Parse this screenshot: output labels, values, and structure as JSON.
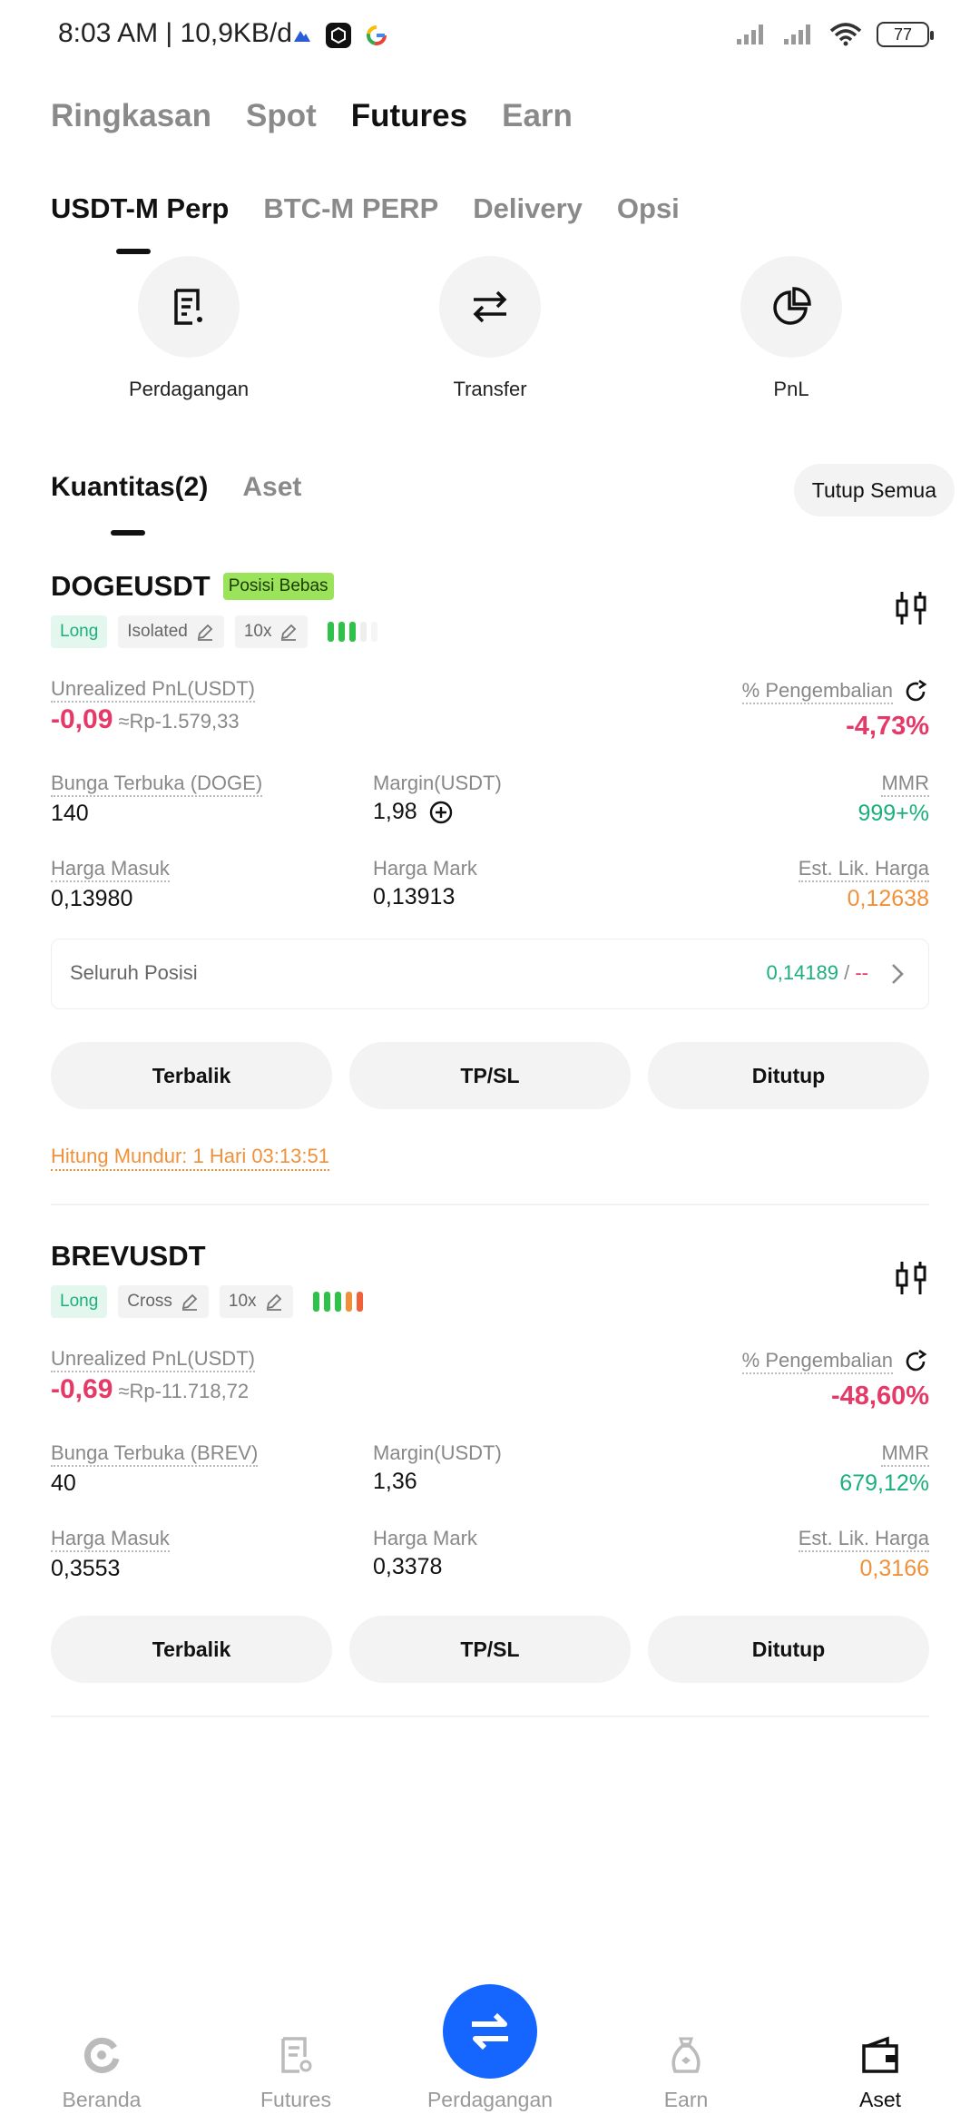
{
  "status_bar": {
    "time_info": "8:03 AM | 10,9KB/d",
    "battery": "77"
  },
  "top_tabs": [
    {
      "label": "Ringkasan",
      "active": false
    },
    {
      "label": "Spot",
      "active": false
    },
    {
      "label": "Futures",
      "active": true
    },
    {
      "label": "Earn",
      "active": false
    }
  ],
  "sub_tabs": [
    {
      "label": "USDT-M Perp",
      "active": true
    },
    {
      "label": "BTC-M PERP",
      "active": false
    },
    {
      "label": "Delivery",
      "active": false
    },
    {
      "label": "Opsi",
      "active": false
    }
  ],
  "quick_actions": [
    {
      "label": "Perdagangan",
      "icon": "document-icon"
    },
    {
      "label": "Transfer",
      "icon": "transfer-arrows-icon"
    },
    {
      "label": "PnL",
      "icon": "pie-chart-icon"
    }
  ],
  "position_tabs": [
    {
      "label": "Kuantitas(2)",
      "active": true
    },
    {
      "label": "Aset",
      "active": false
    }
  ],
  "close_all_label": "Tutup Semua",
  "positions": [
    {
      "symbol": "DOGEUSDT",
      "free_badge": "Posisi Bebas",
      "side": "Long",
      "margin_mode": "Isolated",
      "leverage": "10x",
      "pnl_label": "Unrealized PnL(USDT)",
      "pnl_value": "-0,09",
      "pnl_fiat": "≈Rp-1.579,33",
      "roe_label": "% Pengembalian",
      "roe_value": "-4,73%",
      "oi_label": "Bunga Terbuka (DOGE)",
      "oi_value": "140",
      "margin_label": "Margin(USDT)",
      "margin_value": "1,98",
      "mmr_label": "MMR",
      "mmr_value": "999+%",
      "entry_label": "Harga Masuk",
      "entry_value": "0,13980",
      "mark_label": "Harga Mark",
      "mark_value": "0,13913",
      "liq_label": "Est. Lik. Harga",
      "liq_value": "0,12638",
      "whole_label": "Seluruh Posisi",
      "whole_tp": "0,14189",
      "whole_sep": " / ",
      "whole_sl": "--",
      "btn_reverse": "Terbalik",
      "btn_tpsl": "TP/SL",
      "btn_close": "Ditutup",
      "countdown": "Hitung Mundur:  1 Hari 03:13:51",
      "risk_bars": [
        "#2ec24a",
        "#2ec24a",
        "#2ec24a",
        "#eeeeee",
        "#f5f5f5"
      ]
    },
    {
      "symbol": "BREVUSDT",
      "side": "Long",
      "margin_mode": "Cross",
      "leverage": "10x",
      "pnl_label": "Unrealized PnL(USDT)",
      "pnl_value": "-0,69",
      "pnl_fiat": "≈Rp-11.718,72",
      "roe_label": "% Pengembalian",
      "roe_value": "-48,60%",
      "oi_label": "Bunga Terbuka (BREV)",
      "oi_value": "40",
      "margin_label": "Margin(USDT)",
      "margin_value": "1,36",
      "mmr_label": "MMR",
      "mmr_value": "679,12%",
      "entry_label": "Harga Masuk",
      "entry_value": "0,3553",
      "mark_label": "Harga Mark",
      "mark_value": "0,3378",
      "liq_label": "Est. Lik. Harga",
      "liq_value": "0,3166",
      "btn_reverse": "Terbalik",
      "btn_tpsl": "TP/SL",
      "btn_close": "Ditutup",
      "risk_bars": [
        "#2ec24a",
        "#2ec24a",
        "#2ec24a",
        "#f0913a",
        "#f0613a"
      ]
    }
  ],
  "bottom_nav": [
    {
      "label": "Beranda",
      "icon": "home-logo-icon",
      "active": false
    },
    {
      "label": "Futures",
      "icon": "futures-icon",
      "active": false
    },
    {
      "label": "Perdagangan",
      "icon": "trade-swap-icon",
      "active": false
    },
    {
      "label": "Earn",
      "icon": "earn-icon",
      "active": false
    },
    {
      "label": "Aset",
      "icon": "wallet-icon",
      "active": true
    }
  ],
  "colors": {
    "accent_blue": "#1565ff",
    "positive": "#1bb07a",
    "negative": "#e63967",
    "warning": "#f0913a"
  }
}
